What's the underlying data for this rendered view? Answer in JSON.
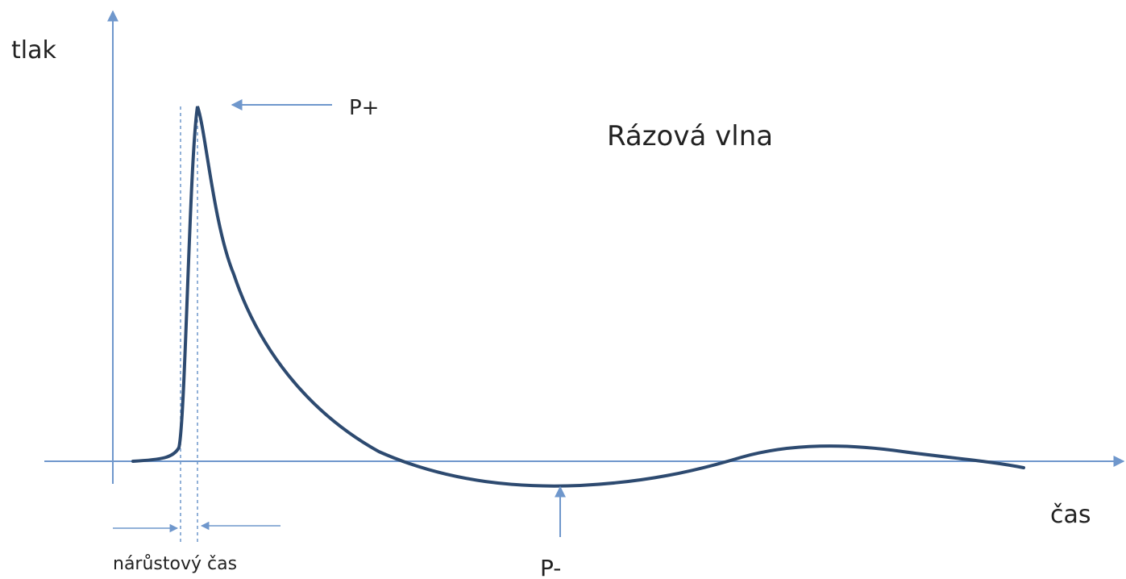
{
  "title": "Rázová vlna",
  "labels": {
    "y_axis": "tlak",
    "x_axis": "čas",
    "peak": "P+",
    "trough": "P-",
    "rise_time": "nárůstový čas"
  }
}
